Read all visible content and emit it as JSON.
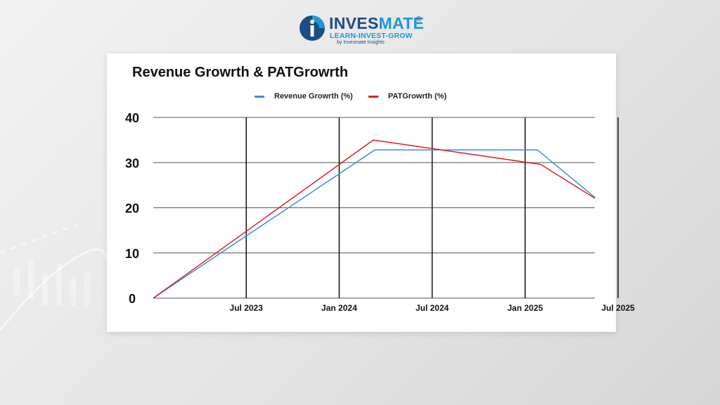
{
  "brand": {
    "name_part1": "INVES",
    "name_part2": "MATE",
    "registered": "®",
    "tagline": "LEARN-INVEST-GROW",
    "byline": "by Invesmate Insights"
  },
  "colors": {
    "brand_dark": "#1d4d86",
    "brand_light": "#1d9ad6",
    "revenue": "#3b8ee8",
    "pat": "#e02020"
  },
  "chart_data": {
    "type": "line",
    "title": "Revenue Growrth & PATGrowrth",
    "xlabel": "",
    "ylabel": "",
    "ylim": [
      0,
      40
    ],
    "y_ticks": [
      0,
      10,
      20,
      30,
      40
    ],
    "x_ticks": [
      "Jul 2023",
      "Jan 2024",
      "Jul 2024",
      "Jan 2025",
      "Jul 2025"
    ],
    "x_range_months": [
      -2,
      26.5
    ],
    "x_tick_months": [
      4,
      10,
      16,
      22,
      28
    ],
    "legend_position": "top-center",
    "series": [
      {
        "name": "Revenue Growrth (%)",
        "color": "#3b8ee8",
        "points": [
          [
            -2,
            0
          ],
          [
            12.3,
            32.8
          ],
          [
            22.8,
            32.8
          ],
          [
            26.5,
            22.3
          ]
        ]
      },
      {
        "name": "PATGrowrth (%)",
        "color": "#e02020",
        "points": [
          [
            -2,
            0
          ],
          [
            12.2,
            35
          ],
          [
            23,
            29.6
          ],
          [
            26.5,
            22.1
          ]
        ]
      }
    ]
  }
}
